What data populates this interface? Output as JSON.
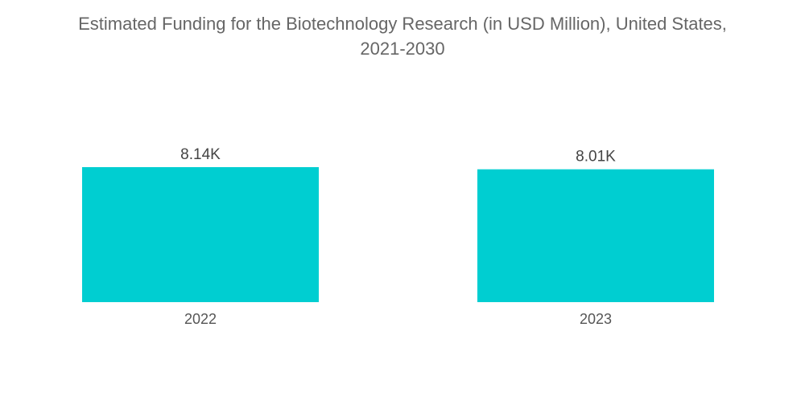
{
  "chart_data": {
    "type": "bar",
    "title_line1": "Estimated Funding for the Biotechnology Research (in USD Million), United States,",
    "title_line2": "2021-2030",
    "categories": [
      "2022",
      "2023"
    ],
    "values": [
      8140,
      8010
    ],
    "data_labels": [
      "8.14K",
      "8.01K"
    ],
    "xlabel": "",
    "ylabel": "",
    "ylim": [
      0,
      8140
    ],
    "grid": false,
    "legend": "none",
    "bar_color": "#00CED1"
  }
}
